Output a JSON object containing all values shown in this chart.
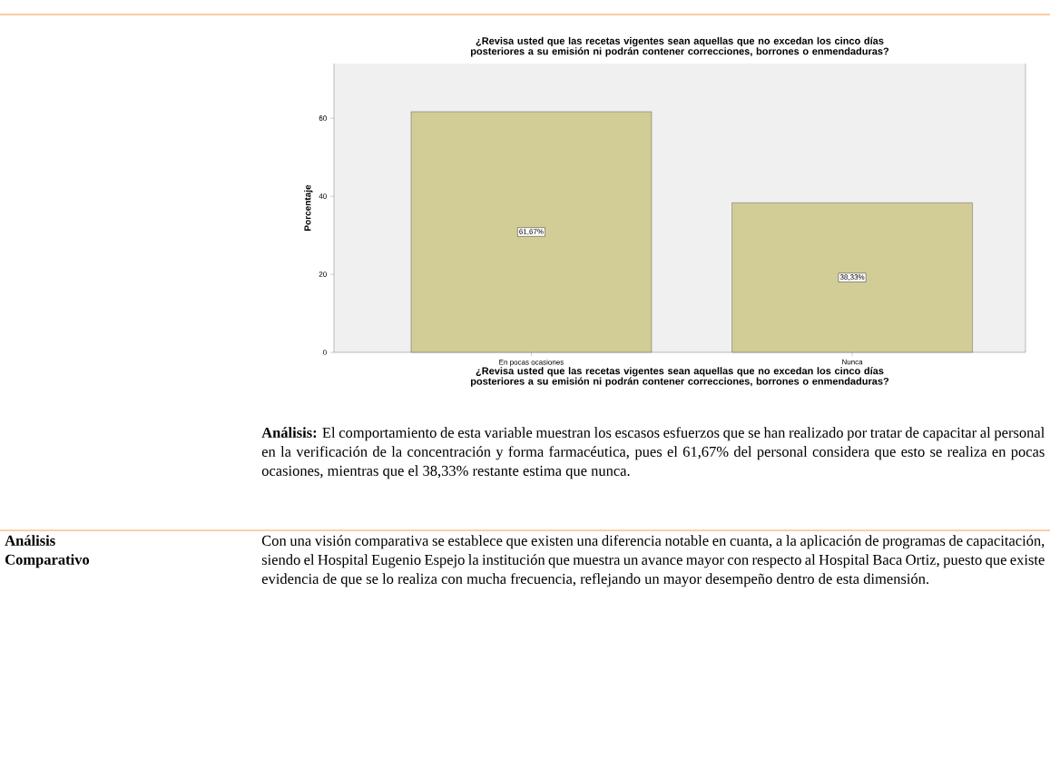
{
  "chart_data": {
    "type": "bar",
    "title": "¿Revisa usted que las recetas vigentes sean aquellas que no excedan los cinco días posteriores a su emisión ni podrán contener correcciones, borrones o enmendaduras?",
    "xlabel": "¿Revisa usted que las recetas vigentes sean aquellas que no excedan los cinco días posteriores a su emisión ni podrán contener correcciones, borrones o enmendaduras?",
    "ylabel": "Porcentaje",
    "categories": [
      "En pocas ocasiones",
      "Nunca"
    ],
    "values": [
      61.67,
      38.33
    ],
    "value_labels": [
      "61,67%",
      "38,33%"
    ],
    "color": "#d2cc96",
    "ylim": [
      0,
      74
    ],
    "yticks": [
      0,
      20,
      40,
      60
    ],
    "grid": false,
    "annotations": [
      "**Análisis:** El comportamiento de esta variable muestran los escasos esfuerzos que se han realizado por tratar de capacitar al personal en la verificación de la concentración y forma farmacéutica, pues el 61,67% del personal considera que esto se realiza en pocas ocasiones, mientras que el 38,33% restante estima que nunca.",
      "**Análisis Comparativo**",
      "Con una visión comparativa se establece que existen una diferencia notable en cuanta, a la aplicación de programas de capacitación, siendo el Hospital Eugenio Espejo la institución que muestra un avance mayor con respecto al Hospital Baca Ortiz, puesto que existe evidencia de que se lo realiza con mucha frecuencia, reflejando un mayor desempeño dentro de esta dimensión."
    ]
  }
}
